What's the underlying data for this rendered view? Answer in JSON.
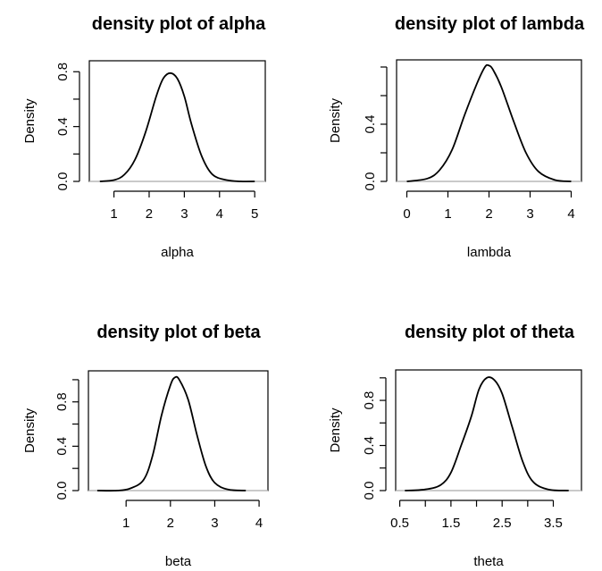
{
  "chart_data": [
    {
      "type": "line",
      "title": "density plot of alpha",
      "xlabel": "alpha",
      "ylabel": "Density",
      "xlim": [
        0.3,
        5.3
      ],
      "ylim": [
        0,
        0.88
      ],
      "xticks": [
        1,
        2,
        3,
        4,
        5
      ],
      "xtick_labels": [
        "1",
        "2",
        "3",
        "4",
        "5"
      ],
      "yticks": [
        0.0,
        0.4,
        0.8
      ],
      "ytick_labels": [
        "0.0",
        "0.4",
        "0.8"
      ],
      "yminor": [
        0.2,
        0.6
      ],
      "grid": false,
      "x": [
        0.6,
        1.0,
        1.3,
        1.6,
        1.9,
        2.2,
        2.4,
        2.6,
        2.8,
        3.0,
        3.2,
        3.5,
        3.8,
        4.2,
        4.6,
        5.0
      ],
      "y": [
        0.0,
        0.01,
        0.05,
        0.16,
        0.36,
        0.62,
        0.75,
        0.79,
        0.75,
        0.62,
        0.42,
        0.18,
        0.05,
        0.01,
        0.0,
        0.0
      ]
    },
    {
      "type": "line",
      "title": "density plot of lambda",
      "xlabel": "lambda",
      "ylabel": "Density",
      "xlim": [
        -0.25,
        4.25
      ],
      "ylim": [
        0,
        0.85
      ],
      "xticks": [
        0,
        1,
        2,
        3,
        4
      ],
      "xtick_labels": [
        "0",
        "1",
        "2",
        "3",
        "4"
      ],
      "yticks": [
        0.0,
        0.4
      ],
      "ytick_labels": [
        "0.0",
        "0.4"
      ],
      "yminor": [
        0.2,
        0.6,
        0.8
      ],
      "grid": false,
      "x": [
        0.0,
        0.5,
        0.8,
        1.1,
        1.4,
        1.7,
        1.9,
        2.0,
        2.1,
        2.3,
        2.6,
        2.9,
        3.2,
        3.6,
        4.0
      ],
      "y": [
        0.0,
        0.02,
        0.08,
        0.22,
        0.46,
        0.68,
        0.8,
        0.81,
        0.78,
        0.66,
        0.42,
        0.2,
        0.07,
        0.01,
        0.0
      ]
    },
    {
      "type": "line",
      "title": "density plot of beta",
      "xlabel": "beta",
      "ylabel": "Density",
      "xlim": [
        0.15,
        4.2
      ],
      "ylim": [
        0,
        1.08
      ],
      "xticks": [
        1,
        2,
        3,
        4
      ],
      "xtick_labels": [
        "1",
        "2",
        "3",
        "4"
      ],
      "yticks": [
        0.0,
        0.4,
        0.8
      ],
      "ytick_labels": [
        "0.0",
        "0.4",
        "0.8"
      ],
      "yminor": [
        0.2,
        0.6,
        1.0
      ],
      "grid": false,
      "x": [
        0.35,
        0.8,
        1.1,
        1.4,
        1.6,
        1.8,
        2.0,
        2.1,
        2.2,
        2.4,
        2.6,
        2.8,
        3.0,
        3.3,
        3.7
      ],
      "y": [
        0.0,
        0.0,
        0.02,
        0.1,
        0.32,
        0.68,
        0.95,
        1.02,
        1.0,
        0.82,
        0.5,
        0.22,
        0.07,
        0.01,
        0.0
      ]
    },
    {
      "type": "line",
      "title": "density plot of theta",
      "xlabel": "theta",
      "ylabel": "Density",
      "xlim": [
        0.42,
        4.05
      ],
      "ylim": [
        0,
        1.07
      ],
      "xticks": [
        0.5,
        1.0,
        1.5,
        2.0,
        2.5,
        3.0,
        3.5
      ],
      "xtick_labels": [
        "0.5",
        "",
        "1.5",
        "",
        "2.5",
        "",
        "3.5"
      ],
      "yticks": [
        0.0,
        0.4,
        0.8
      ],
      "ytick_labels": [
        "0.0",
        "0.4",
        "0.8"
      ],
      "yminor": [
        0.2,
        0.6,
        1.0
      ],
      "grid": false,
      "x": [
        0.6,
        1.0,
        1.3,
        1.5,
        1.7,
        1.9,
        2.05,
        2.2,
        2.35,
        2.5,
        2.7,
        2.9,
        3.1,
        3.4,
        3.8
      ],
      "y": [
        0.0,
        0.01,
        0.05,
        0.16,
        0.4,
        0.66,
        0.9,
        1.0,
        0.98,
        0.86,
        0.56,
        0.26,
        0.08,
        0.01,
        0.0
      ]
    }
  ]
}
